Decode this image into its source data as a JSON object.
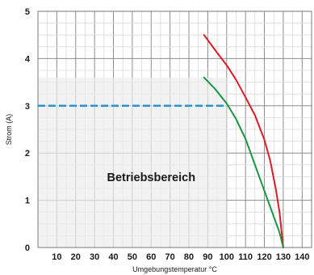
{
  "chart_data": {
    "type": "line",
    "xlabel": "Umgebungstemperatur °C",
    "ylabel": "Strom (A)",
    "xlim": [
      0,
      145
    ],
    "ylim": [
      0,
      5
    ],
    "xticks": [
      10,
      20,
      30,
      40,
      50,
      60,
      70,
      80,
      90,
      100,
      110,
      120,
      130,
      140
    ],
    "yticks": [
      0,
      1,
      2,
      3,
      4,
      5
    ],
    "grid": true,
    "minor_grid_step_x": 5,
    "minor_grid_step_y": 0.25,
    "region": {
      "label": "Betriebsbereich",
      "x": [
        0,
        100
      ],
      "y": [
        0,
        3.6
      ],
      "color": "#ececee"
    },
    "reference_line": {
      "y": 3.0,
      "x": [
        0,
        100
      ],
      "style": "dashed",
      "color": "#2a93d5"
    },
    "series": [
      {
        "color": "#dd1c24",
        "points": [
          [
            88,
            4.5
          ],
          [
            95,
            4.12
          ],
          [
            100,
            3.86
          ],
          [
            105,
            3.55
          ],
          [
            110,
            3.18
          ],
          [
            115,
            2.8
          ],
          [
            120,
            2.28
          ],
          [
            123,
            1.85
          ],
          [
            126,
            1.25
          ],
          [
            128,
            0.75
          ],
          [
            130,
            0.0
          ]
        ]
      },
      {
        "color": "#199541",
        "points": [
          [
            88,
            3.6
          ],
          [
            94,
            3.35
          ],
          [
            100,
            3.05
          ],
          [
            105,
            2.72
          ],
          [
            110,
            2.3
          ],
          [
            115,
            1.75
          ],
          [
            120,
            1.2
          ],
          [
            125,
            0.65
          ],
          [
            128,
            0.32
          ],
          [
            130,
            0.0
          ]
        ]
      }
    ]
  }
}
